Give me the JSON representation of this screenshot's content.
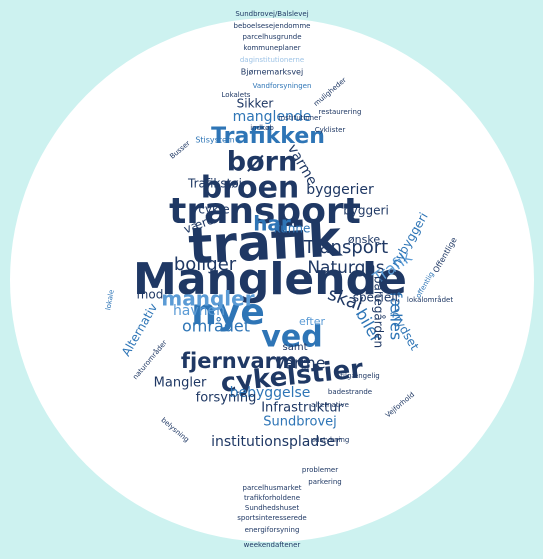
{
  "words": [
    "trafik",
    "Manglende",
    "transport",
    "nye",
    "ved",
    "broen",
    "børn",
    "Trafikken",
    "cykelstier",
    "fjernvarme",
    "mangler",
    "boliger",
    "Naturgas",
    "Transport",
    "skal",
    "biler",
    "Varme",
    "området",
    "Infrastruktur",
    "Sundbrovej",
    "institutionspladser",
    "bebyggelse",
    "forsyning",
    "Mangler",
    "byggerier",
    "manglende",
    "Sikker",
    "kunne",
    "Trafik",
    "fælles",
    "havnen",
    "har",
    "ønske",
    "specielt",
    "krydset",
    "banegården",
    "mod",
    "efter",
    "samt",
    "cykle",
    "Trafikstøj",
    "Alternativ",
    "varme",
    "være",
    "byggeri",
    "nybyggeri",
    "Sundbrovej/Balslevej",
    "beboelsesejendomme",
    "parcelhusgrunde",
    "kommuneplaner",
    "daginstitutionerne",
    "Bjørnemarksvej",
    "Vandforsyningen",
    "Lokalets",
    "muligheder",
    "restaurering",
    "Cyklister",
    "offentlig",
    "Offentlige",
    "lokalområdet",
    "institutioner",
    "alternative",
    "problemer",
    "parkering",
    "Sundhedshuset",
    "energiforsyning",
    "weekendaftener",
    "sportsinteresserede",
    "trafikforholdene",
    "parcelhusmarket",
    "udstykning",
    "badestrande",
    "tilgængelig",
    "Busser",
    "naturområder",
    "Stisystem",
    "belysning",
    "indkøb",
    "lokale",
    "Vejforhold"
  ]
}
